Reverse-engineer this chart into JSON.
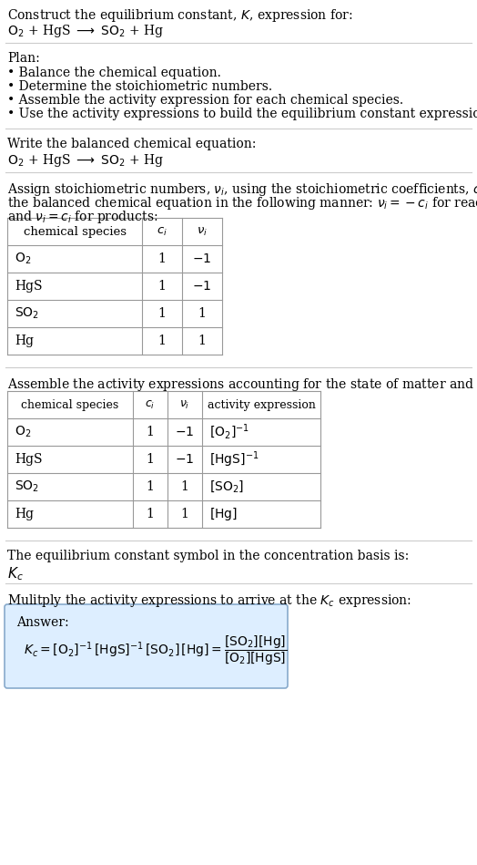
{
  "title_line1": "Construct the equilibrium constant, $K$, expression for:",
  "title_line2": "$\\mathrm{O_2}$ + HgS $\\longrightarrow$ $\\mathrm{SO_2}$ + Hg",
  "plan_header": "Plan:",
  "plan_items": [
    "• Balance the chemical equation.",
    "• Determine the stoichiometric numbers.",
    "• Assemble the activity expression for each chemical species.",
    "• Use the activity expressions to build the equilibrium constant expression."
  ],
  "balanced_eq_header": "Write the balanced chemical equation:",
  "balanced_eq": "$\\mathrm{O_2}$ + HgS $\\longrightarrow$ $\\mathrm{SO_2}$ + Hg",
  "stoich_line1": "Assign stoichiometric numbers, $\\nu_i$, using the stoichiometric coefficients, $c_i$, from",
  "stoich_line2": "the balanced chemical equation in the following manner: $\\nu_i = -c_i$ for reactants",
  "stoich_line3": "and $\\nu_i = c_i$ for products:",
  "table1_headers": [
    "chemical species",
    "$c_i$",
    "$\\nu_i$"
  ],
  "table1_rows": [
    [
      "$\\mathrm{O_2}$",
      "1",
      "$-1$"
    ],
    [
      "HgS",
      "1",
      "$-1$"
    ],
    [
      "$\\mathrm{SO_2}$",
      "1",
      "1"
    ],
    [
      "Hg",
      "1",
      "1"
    ]
  ],
  "activity_intro": "Assemble the activity expressions accounting for the state of matter and $\\nu_i$:",
  "table2_headers": [
    "chemical species",
    "$c_i$",
    "$\\nu_i$",
    "activity expression"
  ],
  "table2_rows": [
    [
      "$\\mathrm{O_2}$",
      "1",
      "$-1$",
      "$[\\mathrm{O_2}]^{-1}$"
    ],
    [
      "HgS",
      "1",
      "$-1$",
      "$[\\mathrm{HgS}]^{-1}$"
    ],
    [
      "$\\mathrm{SO_2}$",
      "1",
      "1",
      "$[\\mathrm{SO_2}]$"
    ],
    [
      "Hg",
      "1",
      "1",
      "$[\\mathrm{Hg}]$"
    ]
  ],
  "kc_text": "The equilibrium constant symbol in the concentration basis is:",
  "kc_symbol": "$K_c$",
  "multiply_text": "Mulitply the activity expressions to arrive at the $K_c$ expression:",
  "answer_label": "Answer:",
  "answer_line1": "$K_c = [\\mathrm{O_2}]^{-1}\\,[\\mathrm{HgS}]^{-1}\\,[\\mathrm{SO_2}]\\,[\\mathrm{Hg}] = \\dfrac{[\\mathrm{SO_2}][\\mathrm{Hg}]}{[\\mathrm{O_2}][\\mathrm{HgS}]}$",
  "bg_color": "#ffffff",
  "text_color": "#000000",
  "answer_box_color": "#ddeeff",
  "answer_box_border": "#88aacc",
  "divider_color": "#cccccc",
  "font_size": 10.0,
  "small_font_size": 9.5
}
